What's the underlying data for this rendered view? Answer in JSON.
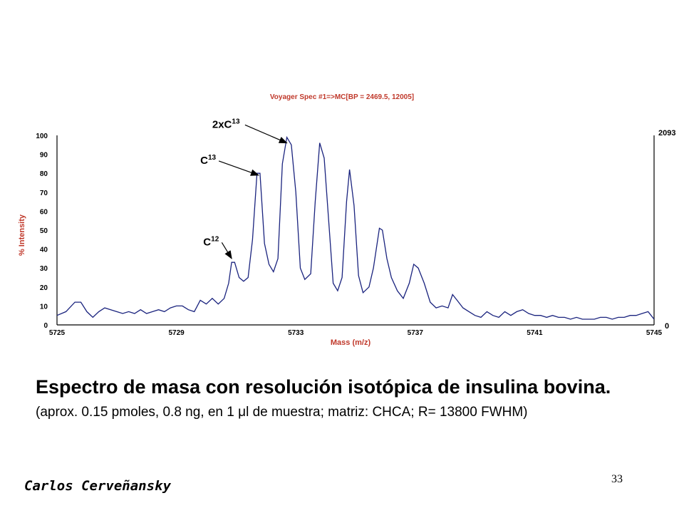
{
  "slide": {
    "title": "Espectro de masa con resolución isotópica de insulina bovina.",
    "subtitle_pre": "(aprox. 0.15 pmoles, 0.8 ng, en 1 ",
    "subtitle_mu": "μ",
    "subtitle_post": "l de muestra; matriz: CHCA; R= 13800 FWHM)",
    "author": "Carlos Cerveñansky",
    "page_number": "33"
  },
  "chart_data": {
    "type": "line",
    "title": "Voyager Spec #1=>MC[BP = 2469.5, 12005]",
    "xlabel": "Mass (m/z)",
    "ylabel": "% Intensity",
    "xlim": [
      5725,
      5745
    ],
    "ylim": [
      0,
      100
    ],
    "x_ticks": [
      "5725",
      "5729",
      "5733",
      "5737",
      "5741",
      "5745"
    ],
    "y_ticks": [
      "0",
      "10",
      "20",
      "30",
      "40",
      "50",
      "60",
      "70",
      "80",
      "90",
      "100"
    ],
    "right_axis": {
      "top_label": "2093",
      "bottom_label": "0"
    },
    "colors": {
      "line": "#1a237e",
      "title": "#c0392b",
      "axis_label": "#c0392b",
      "arrow": "#000000"
    },
    "annotations": [
      {
        "base": "C",
        "sup": "12",
        "label_x": 5729.9,
        "label_y": 42,
        "arrow_to_x": 5730.85,
        "arrow_to_y": 35
      },
      {
        "base": "C",
        "sup": "13",
        "label_x": 5729.8,
        "label_y": 85,
        "arrow_to_x": 5731.75,
        "arrow_to_y": 79
      },
      {
        "base": "2xC",
        "sup": "13",
        "label_x": 5730.2,
        "label_y": 104,
        "arrow_to_x": 5732.7,
        "arrow_to_y": 96
      }
    ],
    "series": [
      {
        "points": [
          [
            5725.0,
            5
          ],
          [
            5725.3,
            7
          ],
          [
            5725.6,
            12
          ],
          [
            5725.8,
            12
          ],
          [
            5726.0,
            7
          ],
          [
            5726.2,
            4
          ],
          [
            5726.4,
            7
          ],
          [
            5726.6,
            9
          ],
          [
            5726.8,
            8
          ],
          [
            5727.0,
            7
          ],
          [
            5727.2,
            6
          ],
          [
            5727.4,
            7
          ],
          [
            5727.6,
            6
          ],
          [
            5727.8,
            8
          ],
          [
            5728.0,
            6
          ],
          [
            5728.2,
            7
          ],
          [
            5728.4,
            8
          ],
          [
            5728.6,
            7
          ],
          [
            5728.8,
            9
          ],
          [
            5729.0,
            10
          ],
          [
            5729.2,
            10
          ],
          [
            5729.4,
            8
          ],
          [
            5729.6,
            7
          ],
          [
            5729.8,
            13
          ],
          [
            5730.0,
            11
          ],
          [
            5730.2,
            14
          ],
          [
            5730.4,
            11
          ],
          [
            5730.6,
            14
          ],
          [
            5730.75,
            22
          ],
          [
            5730.85,
            33
          ],
          [
            5730.95,
            33
          ],
          [
            5731.1,
            25
          ],
          [
            5731.25,
            23
          ],
          [
            5731.4,
            25
          ],
          [
            5731.55,
            45
          ],
          [
            5731.7,
            80
          ],
          [
            5731.8,
            80
          ],
          [
            5731.95,
            43
          ],
          [
            5732.1,
            32
          ],
          [
            5732.25,
            28
          ],
          [
            5732.4,
            35
          ],
          [
            5732.55,
            85
          ],
          [
            5732.7,
            99
          ],
          [
            5732.85,
            95
          ],
          [
            5733.0,
            70
          ],
          [
            5733.15,
            30
          ],
          [
            5733.3,
            24
          ],
          [
            5733.5,
            27
          ],
          [
            5733.65,
            65
          ],
          [
            5733.8,
            96
          ],
          [
            5733.95,
            88
          ],
          [
            5734.1,
            55
          ],
          [
            5734.25,
            22
          ],
          [
            5734.4,
            18
          ],
          [
            5734.55,
            25
          ],
          [
            5734.7,
            65
          ],
          [
            5734.8,
            82
          ],
          [
            5734.95,
            63
          ],
          [
            5735.1,
            26
          ],
          [
            5735.25,
            17
          ],
          [
            5735.45,
            20
          ],
          [
            5735.6,
            30
          ],
          [
            5735.8,
            51
          ],
          [
            5735.9,
            50
          ],
          [
            5736.05,
            35
          ],
          [
            5736.2,
            25
          ],
          [
            5736.4,
            18
          ],
          [
            5736.6,
            14
          ],
          [
            5736.8,
            22
          ],
          [
            5736.95,
            32
          ],
          [
            5737.1,
            30
          ],
          [
            5737.3,
            22
          ],
          [
            5737.5,
            12
          ],
          [
            5737.7,
            9
          ],
          [
            5737.9,
            10
          ],
          [
            5738.1,
            9
          ],
          [
            5738.25,
            16
          ],
          [
            5738.4,
            13
          ],
          [
            5738.6,
            9
          ],
          [
            5738.8,
            7
          ],
          [
            5739.0,
            5
          ],
          [
            5739.2,
            4
          ],
          [
            5739.4,
            7
          ],
          [
            5739.6,
            5
          ],
          [
            5739.8,
            4
          ],
          [
            5740.0,
            7
          ],
          [
            5740.2,
            5
          ],
          [
            5740.4,
            7
          ],
          [
            5740.6,
            8
          ],
          [
            5740.8,
            6
          ],
          [
            5741.0,
            5
          ],
          [
            5741.2,
            5
          ],
          [
            5741.4,
            4
          ],
          [
            5741.6,
            5
          ],
          [
            5741.8,
            4
          ],
          [
            5742.0,
            4
          ],
          [
            5742.2,
            3
          ],
          [
            5742.4,
            4
          ],
          [
            5742.6,
            3
          ],
          [
            5742.8,
            3
          ],
          [
            5743.0,
            3
          ],
          [
            5743.2,
            4
          ],
          [
            5743.4,
            4
          ],
          [
            5743.6,
            3
          ],
          [
            5743.8,
            4
          ],
          [
            5744.0,
            4
          ],
          [
            5744.2,
            5
          ],
          [
            5744.4,
            5
          ],
          [
            5744.6,
            6
          ],
          [
            5744.8,
            7
          ],
          [
            5744.9,
            5
          ],
          [
            5745.0,
            3
          ]
        ]
      }
    ]
  }
}
